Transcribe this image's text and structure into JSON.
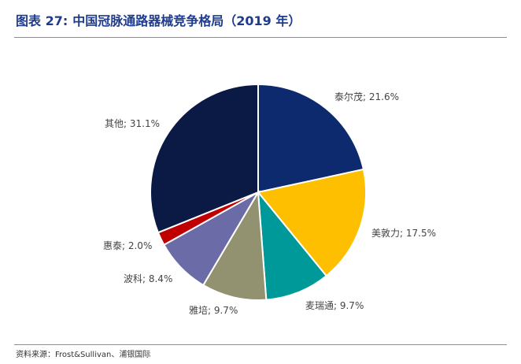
{
  "header": {
    "figure_label": "图表 27:",
    "title": "中国冠脉通路器械竞争格局（2019 年）"
  },
  "source": "资料来源：Frost&Sullivan、浦银国际",
  "chart_data": {
    "type": "pie",
    "title": "中国冠脉通路器械竞争格局（2019 年）",
    "start": "12 o'clock, clockwise",
    "slices": [
      {
        "name": "泰尔茂",
        "value": 21.6,
        "label": "泰尔茂; 21.6%",
        "color": "#0d2a6e"
      },
      {
        "name": "美敦力",
        "value": 17.5,
        "label": "美敦力; 17.5%",
        "color": "#fdbf00"
      },
      {
        "name": "麦瑞通",
        "value": 9.7,
        "label": "麦瑞通; 9.7%",
        "color": "#009999"
      },
      {
        "name": "雅培",
        "value": 9.7,
        "label": "雅培; 9.7%",
        "color": "#929270"
      },
      {
        "name": "波科",
        "value": 8.4,
        "label": "波科; 8.4%",
        "color": "#6b6ba8"
      },
      {
        "name": "惠泰",
        "value": 2.0,
        "label": "惠泰; 2.0%",
        "color": "#c00000"
      },
      {
        "name": "其他",
        "value": 31.1,
        "label": "其他; 31.1%",
        "color": "#0a1a44"
      }
    ]
  }
}
